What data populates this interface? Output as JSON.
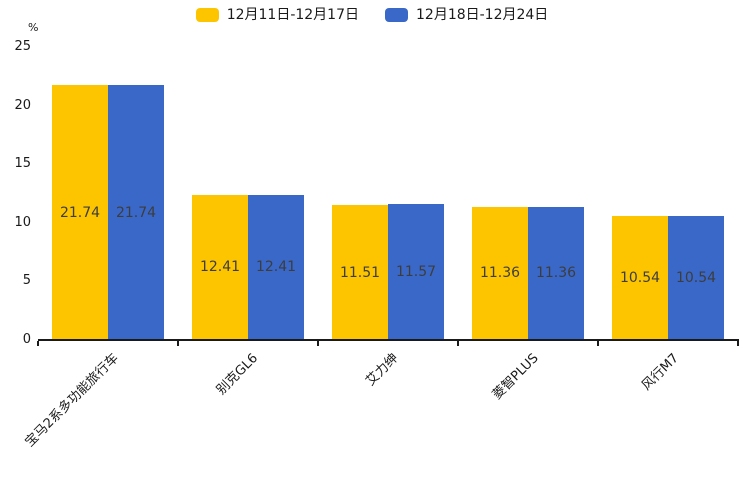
{
  "chart_data": {
    "type": "bar",
    "title": "",
    "ylabel": "%",
    "xlabel": "",
    "ylim": [
      0,
      25
    ],
    "yticks": [
      0,
      5,
      10,
      15,
      20,
      25
    ],
    "grid": false,
    "legend_position": "top",
    "value_labels": true,
    "categories": [
      "宝马2系多功能旅行车",
      "别克GL6",
      "艾力绅",
      "菱智PLUS",
      "风行M7"
    ],
    "series": [
      {
        "name": "12月11日-12月17日",
        "color": "#FDC500",
        "values": [
          21.74,
          12.41,
          11.51,
          11.36,
          10.54
        ]
      },
      {
        "name": "12月18日-12月24日",
        "color": "#3A68C8",
        "values": [
          21.74,
          12.41,
          11.57,
          11.36,
          10.54
        ]
      }
    ],
    "colors": {
      "axis": "#1a1a1a",
      "value_label_text": "#3d3d3d",
      "background": "#ffffff"
    }
  }
}
